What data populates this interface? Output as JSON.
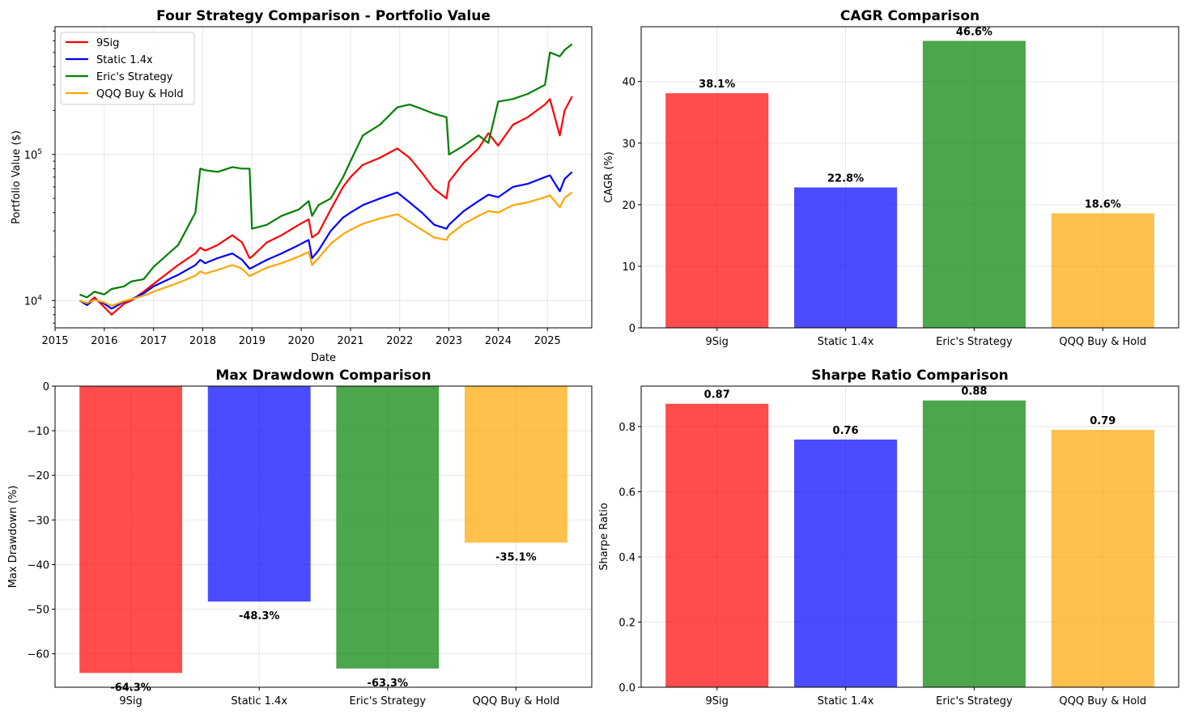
{
  "colors": {
    "9Sig": "#ff0000",
    "Static 1.4x": "#0000ff",
    "Eric's Strategy": "#008000",
    "QQQ Buy & Hold": "#ffa500"
  },
  "chart_data": [
    {
      "type": "line",
      "title": "Four Strategy Comparison - Portfolio Value",
      "xlabel": "Date",
      "ylabel": "Portfolio Value ($)",
      "yscale": "log",
      "xlim": [
        2015.0,
        2025.9
      ],
      "ylim": [
        6500,
        750000
      ],
      "x_ticks": [
        "2015",
        "2016",
        "2017",
        "2018",
        "2019",
        "2020",
        "2021",
        "2022",
        "2023",
        "2024",
        "2025"
      ],
      "y_ticks": [
        {
          "value": 10000,
          "base": "10",
          "exp": "4"
        },
        {
          "value": 100000,
          "base": "10",
          "exp": "5"
        }
      ],
      "legend": "upper-left",
      "grid": true,
      "x": [
        2015.5,
        2015.65,
        2015.8,
        2016.0,
        2016.15,
        2016.4,
        2016.55,
        2016.8,
        2017.0,
        2017.5,
        2017.85,
        2017.95,
        2018.05,
        2018.3,
        2018.6,
        2018.8,
        2018.95,
        2019.0,
        2019.3,
        2019.6,
        2019.95,
        2020.15,
        2020.22,
        2020.35,
        2020.6,
        2020.85,
        2021.0,
        2021.25,
        2021.6,
        2021.95,
        2022.2,
        2022.45,
        2022.7,
        2022.95,
        2023.0,
        2023.3,
        2023.6,
        2023.8,
        2024.0,
        2024.3,
        2024.6,
        2024.95,
        2025.05,
        2025.25,
        2025.35,
        2025.5
      ],
      "series": [
        {
          "name": "9Sig",
          "values": [
            10000,
            9500,
            10500,
            9000,
            8000,
            9500,
            10000,
            11500,
            13000,
            17500,
            21000,
            23000,
            22000,
            24000,
            28000,
            25000,
            19500,
            20000,
            25000,
            28000,
            33000,
            36000,
            27000,
            29000,
            42000,
            60000,
            70000,
            85000,
            95000,
            110000,
            95000,
            75000,
            58000,
            50000,
            65000,
            88000,
            110000,
            140000,
            115000,
            160000,
            180000,
            220000,
            240000,
            135000,
            200000,
            250000
          ]
        },
        {
          "name": "Static 1.4x",
          "values": [
            10000,
            9300,
            10200,
            9500,
            8800,
            9800,
            10200,
            11200,
            12500,
            15000,
            17500,
            19000,
            18000,
            19500,
            21000,
            19000,
            16500,
            16800,
            19000,
            21000,
            24000,
            26000,
            19500,
            22000,
            30000,
            37000,
            40000,
            45000,
            50000,
            55000,
            47000,
            40000,
            33000,
            31000,
            33000,
            41000,
            48000,
            53000,
            51000,
            60000,
            63000,
            70000,
            72000,
            56000,
            68000,
            76000
          ]
        },
        {
          "name": "Eric's Strategy",
          "values": [
            11000,
            10500,
            11500,
            11000,
            12000,
            12500,
            13500,
            14000,
            17000,
            24000,
            40000,
            80000,
            78000,
            76000,
            82000,
            80000,
            80000,
            31000,
            33000,
            38000,
            42000,
            48000,
            38000,
            45000,
            50000,
            70000,
            90000,
            135000,
            160000,
            210000,
            220000,
            205000,
            190000,
            180000,
            100000,
            115000,
            135000,
            120000,
            230000,
            240000,
            260000,
            300000,
            500000,
            470000,
            520000,
            570000
          ]
        },
        {
          "name": "QQQ Buy & Hold",
          "values": [
            10000,
            9600,
            10100,
            9700,
            9200,
            9900,
            10200,
            10800,
            11500,
            13200,
            14800,
            15800,
            15300,
            16200,
            17500,
            16500,
            14700,
            15000,
            16800,
            18000,
            20000,
            21500,
            17500,
            19500,
            24500,
            28500,
            30500,
            33500,
            36500,
            39000,
            34500,
            30500,
            27000,
            26000,
            28000,
            33500,
            38000,
            41000,
            40000,
            45000,
            47000,
            51000,
            52500,
            43500,
            50500,
            55000
          ]
        }
      ]
    },
    {
      "type": "bar",
      "title": "CAGR Comparison",
      "xlabel": "",
      "ylabel": "CAGR (%)",
      "categories": [
        "9Sig",
        "Static 1.4x",
        "Eric's Strategy",
        "QQQ Buy & Hold"
      ],
      "values": [
        38.1,
        22.8,
        46.6,
        18.6
      ],
      "value_labels": [
        "38.1%",
        "22.8%",
        "46.6%",
        "18.6%"
      ],
      "ylim": [
        0,
        48.9
      ],
      "y_ticks": [
        "0",
        "10",
        "20",
        "30",
        "40"
      ],
      "grid": true
    },
    {
      "type": "bar",
      "title": "Max Drawdown Comparison",
      "xlabel": "",
      "ylabel": "Max Drawdown (%)",
      "categories": [
        "9Sig",
        "Static 1.4x",
        "Eric's Strategy",
        "QQQ Buy & Hold"
      ],
      "values": [
        -64.3,
        -48.3,
        -63.3,
        -35.1
      ],
      "value_labels": [
        "-64.3%",
        "-48.3%",
        "-63.3%",
        "-35.1%"
      ],
      "ylim": [
        -67.5,
        0
      ],
      "y_ticks": [
        "0",
        "−10",
        "−20",
        "−30",
        "−40",
        "−50",
        "−60"
      ],
      "grid": true
    },
    {
      "type": "bar",
      "title": "Sharpe Ratio Comparison",
      "xlabel": "",
      "ylabel": "Sharpe Ratio",
      "categories": [
        "9Sig",
        "Static 1.4x",
        "Eric's Strategy",
        "QQQ Buy & Hold"
      ],
      "values": [
        0.87,
        0.76,
        0.88,
        0.79
      ],
      "value_labels": [
        "0.87",
        "0.76",
        "0.88",
        "0.79"
      ],
      "ylim": [
        0,
        0.924
      ],
      "y_ticks": [
        "0.0",
        "0.2",
        "0.4",
        "0.6",
        "0.8"
      ],
      "grid": true
    }
  ]
}
